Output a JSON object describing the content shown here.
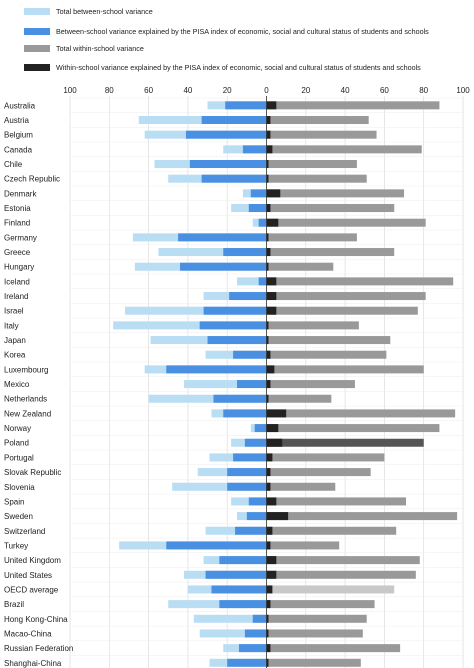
{
  "colors": {
    "total_between": "#b9ddf3",
    "explained_between": "#4a90e2",
    "total_within": "#999999",
    "explained_within": "#222222",
    "oecd_within": "#c8c8c8",
    "highlight_within": "#555555"
  },
  "chart_data": {
    "type": "bar",
    "orientation": "horizontal",
    "legend": [
      {
        "key": "total_between",
        "label": "Total between-school variance"
      },
      {
        "key": "explained_between",
        "label": "Between-school variance explained by the PISA index of economic, social and cultural status of students and schools"
      },
      {
        "key": "total_within",
        "label": "Total within-school variance"
      },
      {
        "key": "explained_within",
        "label": "Within-school variance explained by the PISA index of economic, social and cultural status of students and schools"
      }
    ],
    "axis_ticks": [
      "100",
      "80",
      "60",
      "40",
      "20",
      "0",
      "20",
      "40",
      "60",
      "80",
      "100"
    ],
    "xlim": [
      -100,
      100
    ],
    "grid": true,
    "legend_position": "top-left",
    "categories": [
      "Australia",
      "Austria",
      "Belgium",
      "Canada",
      "Chile",
      "Czech Republic",
      "Denmark",
      "Estonia",
      "Finland",
      "Germany",
      "Greece",
      "Hungary",
      "Iceland",
      "Ireland",
      "Israel",
      "Italy",
      "Japan",
      "Korea",
      "Luxembourg",
      "Mexico",
      "Netherlands",
      "New Zealand",
      "Norway",
      "Poland",
      "Portugal",
      "Slovak Republic",
      "Slovenia",
      "Spain",
      "Sweden",
      "Switzerland",
      "Turkey",
      "United Kingdom",
      "United States",
      "OECD average",
      "Brazil",
      "Hong Kong-China",
      "Macao-China",
      "Russian Federation",
      "Shanghai-China"
    ],
    "series": [
      {
        "name": "Total between-school variance",
        "key": "total_between",
        "values": [
          30,
          65,
          62,
          22,
          57,
          50,
          12,
          18,
          7,
          68,
          55,
          67,
          15,
          32,
          72,
          78,
          59,
          31,
          62,
          42,
          60,
          28,
          8,
          18,
          29,
          35,
          48,
          18,
          15,
          31,
          75,
          32,
          42,
          40,
          50,
          37,
          34,
          22,
          29
        ]
      },
      {
        "name": "Between-school variance explained by the PISA index of economic, social and cultural status of students and schools",
        "key": "explained_between",
        "values": [
          21,
          33,
          41,
          12,
          39,
          33,
          8,
          9,
          4,
          45,
          22,
          44,
          4,
          19,
          32,
          34,
          30,
          17,
          51,
          15,
          27,
          22,
          6,
          11,
          17,
          20,
          20,
          9,
          10,
          16,
          51,
          24,
          31,
          28,
          24,
          7,
          11,
          14,
          20
        ]
      },
      {
        "name": "Total within-school variance",
        "key": "total_within",
        "values": [
          88,
          52,
          56,
          79,
          46,
          51,
          70,
          65,
          81,
          46,
          65,
          34,
          95,
          81,
          77,
          47,
          63,
          61,
          80,
          45,
          33,
          96,
          88,
          80,
          60,
          53,
          35,
          71,
          97,
          66,
          37,
          78,
          76,
          65,
          55,
          51,
          49,
          68,
          48
        ]
      },
      {
        "name": "Within-school variance explained by the PISA index of economic, social and cultural status of students and schools",
        "key": "explained_within",
        "values": [
          5,
          2,
          2,
          3,
          1,
          1,
          7,
          2,
          6,
          1,
          2,
          1,
          5,
          5,
          5,
          1,
          1,
          2,
          4,
          2,
          1,
          10,
          6,
          8,
          3,
          2,
          2,
          5,
          11,
          3,
          2,
          5,
          5,
          3,
          2,
          1,
          1,
          2,
          1
        ]
      }
    ]
  }
}
